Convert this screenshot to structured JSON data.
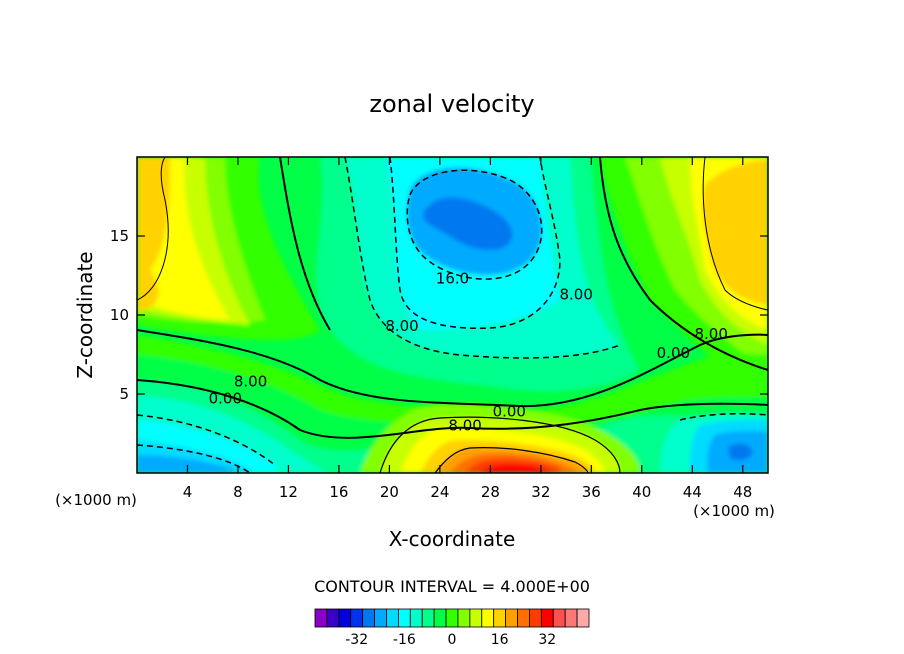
{
  "chart_data": {
    "type": "heatmap",
    "title": "zonal velocity",
    "xlabel": "X-coordinate",
    "ylabel": "Z-coordinate",
    "x_unit": "(×1000 m)",
    "z_unit": "(×1000 m)",
    "xlim": [
      0,
      50
    ],
    "ylim": [
      0,
      20
    ],
    "x_ticks": [
      4,
      8,
      12,
      16,
      20,
      24,
      28,
      32,
      36,
      40,
      44,
      48
    ],
    "y_ticks": [
      5,
      10,
      15
    ],
    "contour_interval_text": "CONTOUR INTERVAL = 4.000E+00",
    "colorbar": {
      "levels": [
        -36,
        -32,
        -28,
        -24,
        -20,
        -16,
        -12,
        -8,
        -4,
        0,
        4,
        8,
        12,
        16,
        20,
        24,
        28,
        32,
        36
      ],
      "tick_labels": [
        "-32",
        "-16",
        "0",
        "16",
        "32"
      ],
      "colors": [
        "#8a00c8",
        "#3a00c8",
        "#0000dc",
        "#0032f0",
        "#0078f0",
        "#00aaff",
        "#00dcff",
        "#00ffff",
        "#00ffcc",
        "#00ff8c",
        "#00ff46",
        "#32ff00",
        "#82ff00",
        "#c8ff00",
        "#ffff00",
        "#ffd200",
        "#ffa000",
        "#ff6e00",
        "#ff3c00",
        "#ff0000",
        "#ff5050",
        "#ff7878",
        "#ffaaaa"
      ]
    },
    "contour_labels": [
      {
        "text": "16.0",
        "x": 25.0,
        "z": 12.3
      },
      {
        "text": "8.00",
        "x": 34.8,
        "z": 11.3
      },
      {
        "text": "8.00",
        "x": 21.0,
        "z": 9.3
      },
      {
        "text": "8.00",
        "x": 45.5,
        "z": 8.8
      },
      {
        "text": "0.00",
        "x": 42.5,
        "z": 7.6
      },
      {
        "text": "8.00",
        "x": 9.0,
        "z": 5.8
      },
      {
        "text": "0.00",
        "x": 7.0,
        "z": 4.7
      },
      {
        "text": "0.00",
        "x": 29.5,
        "z": 3.9
      },
      {
        "text": "8.00",
        "x": 26.0,
        "z": 3.0
      }
    ],
    "features": [
      {
        "description_value": 20,
        "x": 0.5,
        "z": 13
      },
      {
        "description_value": 20,
        "x": 48.5,
        "z": 13
      },
      {
        "description_value": -20,
        "x": 27,
        "z": 16
      },
      {
        "description_value": 36,
        "x": 31,
        "z": 0.5
      },
      {
        "description_value": -20,
        "x": 3,
        "z": 0.5
      },
      {
        "description_value": -20,
        "x": 46,
        "z": 1.0
      }
    ]
  }
}
